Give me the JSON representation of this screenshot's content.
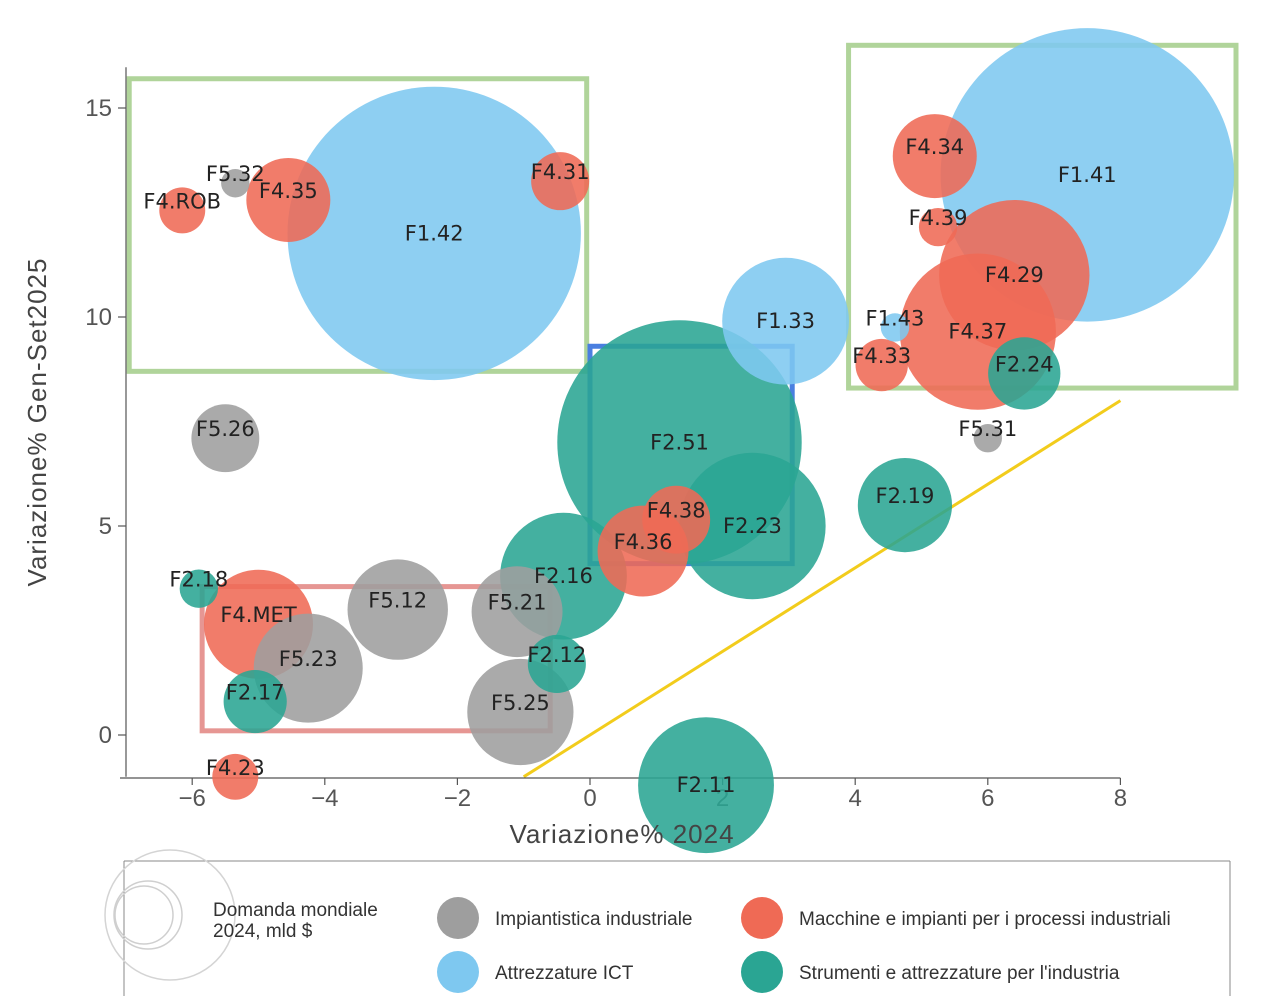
{
  "chart_data": {
    "type": "scatter",
    "xlabel": "Variazione% 2024",
    "ylabel": "Variazione% Gen-Set2025",
    "xlim": [
      -7,
      8
    ],
    "ylim": [
      -1,
      16
    ],
    "x_ticks": [
      -6,
      -4,
      -2,
      0,
      2,
      4,
      6,
      8
    ],
    "x_tick_labels": [
      "−6",
      "−4",
      "−2",
      "0",
      "2",
      "4",
      "6",
      "8"
    ],
    "y_ticks": [
      0,
      5,
      10,
      15
    ],
    "y_tick_labels": [
      "0",
      "5",
      "10",
      "15"
    ],
    "categories": {
      "gray": {
        "name": "Impiantistica industriale",
        "color": "#9e9e9e"
      },
      "red": {
        "name": "Macchine e impianti per i processi industriali",
        "color": "#ef6a55"
      },
      "blue": {
        "name": "Attrezzature ICT",
        "color": "#7ec8f0"
      },
      "teal": {
        "name": "Strumenti e attrezzature per l'industria",
        "color": "#2aa593"
      }
    },
    "points": [
      {
        "label": "F1.42",
        "x": -2.35,
        "y": 12.0,
        "size": 145,
        "category": "blue"
      },
      {
        "label": "F1.41",
        "x": 7.5,
        "y": 13.4,
        "size": 145,
        "category": "blue"
      },
      {
        "label": "F2.51",
        "x": 1.35,
        "y": 7.0,
        "size": 100,
        "category": "teal"
      },
      {
        "label": "F1.33",
        "x": 2.95,
        "y": 9.9,
        "size": 26,
        "category": "blue"
      },
      {
        "label": "F4.29",
        "x": 6.4,
        "y": 11.0,
        "size": 37,
        "category": "red"
      },
      {
        "label": "F4.37",
        "x": 5.85,
        "y": 9.65,
        "size": 40,
        "category": "red"
      },
      {
        "label": "F2.23",
        "x": 2.45,
        "y": 5.0,
        "size": 35,
        "category": "teal"
      },
      {
        "label": "F2.11",
        "x": 1.75,
        "y": -1.2,
        "size": 30,
        "category": "teal"
      },
      {
        "label": "F2.16",
        "x": -0.4,
        "y": 3.8,
        "size": 26,
        "category": "teal"
      },
      {
        "label": "F4.36",
        "x": 0.8,
        "y": 4.4,
        "size": 13,
        "category": "red"
      },
      {
        "label": "F4.38",
        "x": 1.3,
        "y": 5.15,
        "size": 7,
        "category": "red"
      },
      {
        "label": "F2.19",
        "x": 4.75,
        "y": 5.5,
        "size": 14,
        "category": "teal"
      },
      {
        "label": "F2.24",
        "x": 6.55,
        "y": 8.65,
        "size": 8,
        "category": "teal"
      },
      {
        "label": "F4.33",
        "x": 4.4,
        "y": 8.85,
        "size": 4,
        "category": "red"
      },
      {
        "label": "F1.43",
        "x": 4.6,
        "y": 9.75,
        "size": 1,
        "category": "blue"
      },
      {
        "label": "F4.39",
        "x": 5.25,
        "y": 12.15,
        "size": 2,
        "category": "red"
      },
      {
        "label": "F4.34",
        "x": 5.2,
        "y": 13.85,
        "size": 11,
        "category": "red"
      },
      {
        "label": "F5.31",
        "x": 6.0,
        "y": 7.1,
        "size": 1,
        "category": "gray"
      },
      {
        "label": "F4.31",
        "x": -0.45,
        "y": 13.25,
        "size": 5,
        "category": "red"
      },
      {
        "label": "F4.35",
        "x": -4.55,
        "y": 12.8,
        "size": 11,
        "category": "red"
      },
      {
        "label": "F5.32",
        "x": -5.35,
        "y": 13.2,
        "size": 1,
        "category": "gray"
      },
      {
        "label": "F4.ROB",
        "x": -6.15,
        "y": 12.55,
        "size": 3,
        "category": "red"
      },
      {
        "label": "F5.26",
        "x": -5.5,
        "y": 7.1,
        "size": 7,
        "category": "gray"
      },
      {
        "label": "F2.18",
        "x": -5.9,
        "y": 3.5,
        "size": 2,
        "category": "teal"
      },
      {
        "label": "F4.MET",
        "x": -5.0,
        "y": 2.65,
        "size": 19,
        "category": "red"
      },
      {
        "label": "F5.12",
        "x": -2.9,
        "y": 3.0,
        "size": 16,
        "category": "gray"
      },
      {
        "label": "F5.21",
        "x": -1.1,
        "y": 2.95,
        "size": 13,
        "category": "gray"
      },
      {
        "label": "F5.23",
        "x": -4.25,
        "y": 1.6,
        "size": 19,
        "category": "gray"
      },
      {
        "label": "F2.12",
        "x": -0.5,
        "y": 1.7,
        "size": 5,
        "category": "teal"
      },
      {
        "label": "F2.17",
        "x": -5.05,
        "y": 0.8,
        "size": 6,
        "category": "teal"
      },
      {
        "label": "F5.25",
        "x": -1.05,
        "y": 0.55,
        "size": 18,
        "category": "gray"
      },
      {
        "label": "F4.23",
        "x": -5.35,
        "y": -1.0,
        "size": 3,
        "category": "red"
      }
    ],
    "reference_line": {
      "color": "#f2cc1c",
      "from": [
        -1.0,
        -1.0
      ],
      "to": [
        8.0,
        8.0
      ]
    },
    "highlight_boxes": [
      {
        "color": "#b0d49a",
        "x_range": [
          -6.95,
          -0.05
        ],
        "y_range": [
          8.7,
          15.7
        ]
      },
      {
        "color": "#b0d49a",
        "x_range": [
          3.9,
          9.75
        ],
        "y_range": [
          8.3,
          16.5
        ]
      },
      {
        "color": "#4a7fe0",
        "x_range": [
          0.0,
          3.05
        ],
        "y_range": [
          4.1,
          9.3
        ]
      },
      {
        "color": "#e69693",
        "x_range": [
          -5.85,
          -0.6
        ],
        "y_range": [
          0.1,
          3.55
        ]
      }
    ],
    "legend": {
      "size_title": "Domanda mondiale 2024, mld $",
      "size_title_line1": "Domanda mondiale",
      "size_title_line2": "2024, mld $",
      "entries": [
        {
          "category": "gray",
          "label": "Impiantistica industriale"
        },
        {
          "category": "red",
          "label": "Macchine e impianti per i processi industriali"
        },
        {
          "category": "blue",
          "label": "Attrezzature ICT"
        },
        {
          "category": "teal",
          "label": "Strumenti e attrezzature per l'industria"
        }
      ],
      "placement": "bottom"
    }
  }
}
